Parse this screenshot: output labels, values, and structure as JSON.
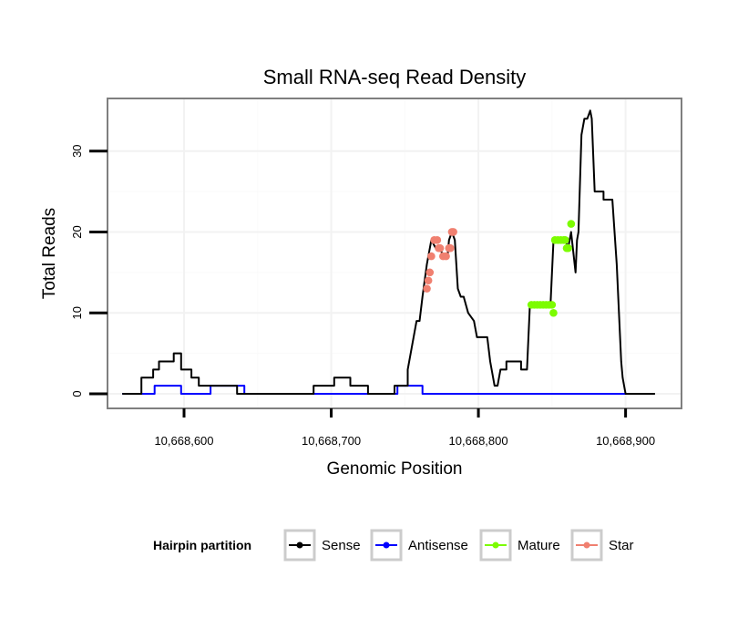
{
  "chart_data": {
    "type": "line",
    "title": "Small RNA-seq Read Density",
    "xlabel": "Genomic Position",
    "ylabel": "Total Reads",
    "xlim": [
      10668548,
      10668938
    ],
    "ylim": [
      -1.8,
      36.5
    ],
    "x_ticks": [
      10668600,
      10668700,
      10668800,
      10668900
    ],
    "x_tick_labels": [
      "10,668,600",
      "10,668,700",
      "10,668,800",
      "10,668,900"
    ],
    "y_ticks": [
      0,
      10,
      20,
      30
    ],
    "y_tick_labels": [
      "0",
      "10",
      "20",
      "30"
    ],
    "grid": true,
    "legend": {
      "title": "Hairpin partition",
      "position": "bottom",
      "entries": [
        {
          "name": "Sense",
          "color": "#000000"
        },
        {
          "name": "Antisense",
          "color": "#0000ff"
        },
        {
          "name": "Mature",
          "color": "#7cfc00"
        },
        {
          "name": "Star",
          "color": "#f08070"
        }
      ]
    },
    "series": [
      {
        "name": "Sense",
        "color": "#000000",
        "style": "line",
        "points": [
          [
            10668558,
            0
          ],
          [
            10668571,
            0
          ],
          [
            10668571,
            2
          ],
          [
            10668579,
            2
          ],
          [
            10668579,
            3
          ],
          [
            10668583,
            3
          ],
          [
            10668583,
            4
          ],
          [
            10668593,
            4
          ],
          [
            10668593,
            5
          ],
          [
            10668598,
            5
          ],
          [
            10668598,
            3
          ],
          [
            10668605,
            3
          ],
          [
            10668605,
            2
          ],
          [
            10668610,
            2
          ],
          [
            10668610,
            1
          ],
          [
            10668636,
            1
          ],
          [
            10668636,
            0
          ],
          [
            10668688,
            0
          ],
          [
            10668688,
            1
          ],
          [
            10668702,
            1
          ],
          [
            10668702,
            2
          ],
          [
            10668713,
            2
          ],
          [
            10668713,
            1
          ],
          [
            10668725,
            1
          ],
          [
            10668725,
            0
          ],
          [
            10668743,
            0
          ],
          [
            10668743,
            1
          ],
          [
            10668752,
            1
          ],
          [
            10668752,
            3
          ],
          [
            10668758,
            9
          ],
          [
            10668760,
            9
          ],
          [
            10668762,
            12
          ],
          [
            10668765,
            16
          ],
          [
            10668768,
            19
          ],
          [
            10668771,
            18
          ],
          [
            10668774,
            18
          ],
          [
            10668776,
            17
          ],
          [
            10668779,
            17
          ],
          [
            10668780,
            19
          ],
          [
            10668782,
            20
          ],
          [
            10668784,
            19
          ],
          [
            10668786,
            13
          ],
          [
            10668788,
            12
          ],
          [
            10668790,
            12
          ],
          [
            10668793,
            10
          ],
          [
            10668797,
            9
          ],
          [
            10668799,
            7
          ],
          [
            10668806,
            7
          ],
          [
            10668808,
            4
          ],
          [
            10668811,
            1
          ],
          [
            10668813,
            1
          ],
          [
            10668815,
            3
          ],
          [
            10668819,
            3
          ],
          [
            10668819,
            4
          ],
          [
            10668829,
            4
          ],
          [
            10668829,
            3
          ],
          [
            10668833,
            3
          ],
          [
            10668835,
            11
          ],
          [
            10668849,
            11
          ],
          [
            10668851,
            19
          ],
          [
            10668859,
            19
          ],
          [
            10668861,
            18
          ],
          [
            10668863,
            20
          ],
          [
            10668866,
            15
          ],
          [
            10668867,
            19
          ],
          [
            10668868,
            20
          ],
          [
            10668870,
            32
          ],
          [
            10668872,
            34
          ],
          [
            10668874,
            34
          ],
          [
            10668876,
            35
          ],
          [
            10668877,
            34
          ],
          [
            10668879,
            25
          ],
          [
            10668885,
            25
          ],
          [
            10668885,
            24
          ],
          [
            10668891,
            24
          ],
          [
            10668894,
            16
          ],
          [
            10668897,
            4
          ],
          [
            10668898,
            2
          ],
          [
            10668900,
            0
          ],
          [
            10668920,
            0
          ]
        ]
      },
      {
        "name": "Antisense",
        "color": "#0000ff",
        "style": "line",
        "points": [
          [
            10668558,
            0
          ],
          [
            10668580,
            0
          ],
          [
            10668580,
            1
          ],
          [
            10668598,
            1
          ],
          [
            10668598,
            0
          ],
          [
            10668618,
            0
          ],
          [
            10668618,
            1
          ],
          [
            10668641,
            1
          ],
          [
            10668641,
            0
          ],
          [
            10668745,
            0
          ],
          [
            10668745,
            1
          ],
          [
            10668762,
            1
          ],
          [
            10668762,
            0
          ],
          [
            10668900,
            0
          ]
        ]
      },
      {
        "name": "Mature",
        "color": "#7cfc00",
        "style": "points",
        "points": [
          [
            10668836,
            11
          ],
          [
            10668838,
            11
          ],
          [
            10668840,
            11
          ],
          [
            10668842,
            11
          ],
          [
            10668844,
            11
          ],
          [
            10668846,
            11
          ],
          [
            10668848,
            11
          ],
          [
            10668850,
            11
          ],
          [
            10668851,
            10
          ],
          [
            10668852,
            19
          ],
          [
            10668854,
            19
          ],
          [
            10668856,
            19
          ],
          [
            10668858,
            19
          ],
          [
            10668859,
            19
          ],
          [
            10668860,
            18
          ],
          [
            10668861,
            18
          ],
          [
            10668863,
            21
          ]
        ]
      },
      {
        "name": "Star",
        "color": "#f08070",
        "style": "points",
        "points": [
          [
            10668765,
            13
          ],
          [
            10668766,
            14
          ],
          [
            10668767,
            15
          ],
          [
            10668768,
            17
          ],
          [
            10668770,
            19
          ],
          [
            10668772,
            19
          ],
          [
            10668773,
            18
          ],
          [
            10668774,
            18
          ],
          [
            10668776,
            17
          ],
          [
            10668778,
            17
          ],
          [
            10668780,
            18
          ],
          [
            10668781,
            18
          ],
          [
            10668782,
            20
          ],
          [
            10668783,
            20
          ]
        ]
      }
    ]
  }
}
